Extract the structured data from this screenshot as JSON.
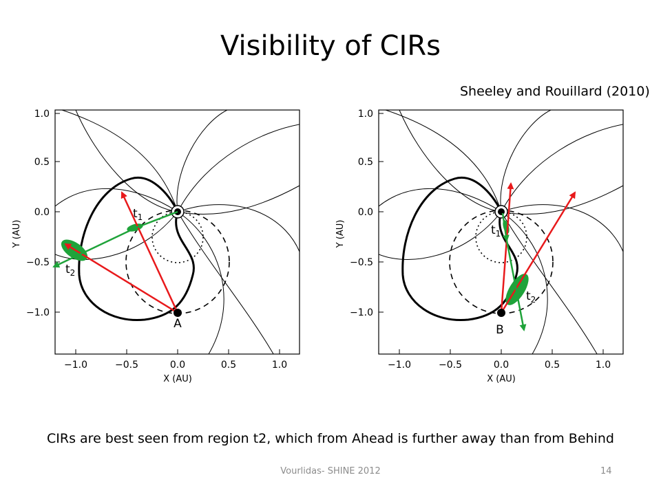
{
  "slide": {
    "title": "Visibility of CIRs",
    "citation": "Sheeley and Rouillard (2010)",
    "caption": "CIRs are best seen from region t2, which from Ahead is further away than from Behind",
    "footer": "Vourlidas- SHINE 2012",
    "page_number": "14"
  },
  "panels": [
    {
      "id": "ahead",
      "spacecraft_label": "A",
      "xlabel": "X (AU)",
      "ylabel": "Y (AU)",
      "x_ticks": [
        "−1.0",
        "−0.5",
        "0.0",
        "0.5",
        "1.0"
      ],
      "y_ticks": [
        "1.0",
        "0.5",
        "0.0",
        "−0.5",
        "−1.0"
      ],
      "time_labels": [
        {
          "base": "t",
          "sub": "1"
        },
        {
          "base": "t",
          "sub": "2"
        }
      ]
    },
    {
      "id": "behind",
      "spacecraft_label": "B",
      "xlabel": "X (AU)",
      "ylabel": "Y (AU)",
      "x_ticks": [
        "−1.0",
        "−0.5",
        "0.0",
        "0.5",
        "1.0"
      ],
      "y_ticks": [
        "1.0",
        "0.5",
        "0.0",
        "−0.5",
        "−1.0"
      ],
      "time_labels": [
        {
          "base": "t",
          "sub": "1"
        },
        {
          "base": "t",
          "sub": "2"
        }
      ]
    }
  ],
  "colors": {
    "sightline": "#e8191b",
    "cir_region": "#1fa33a",
    "lines": "#000000"
  }
}
